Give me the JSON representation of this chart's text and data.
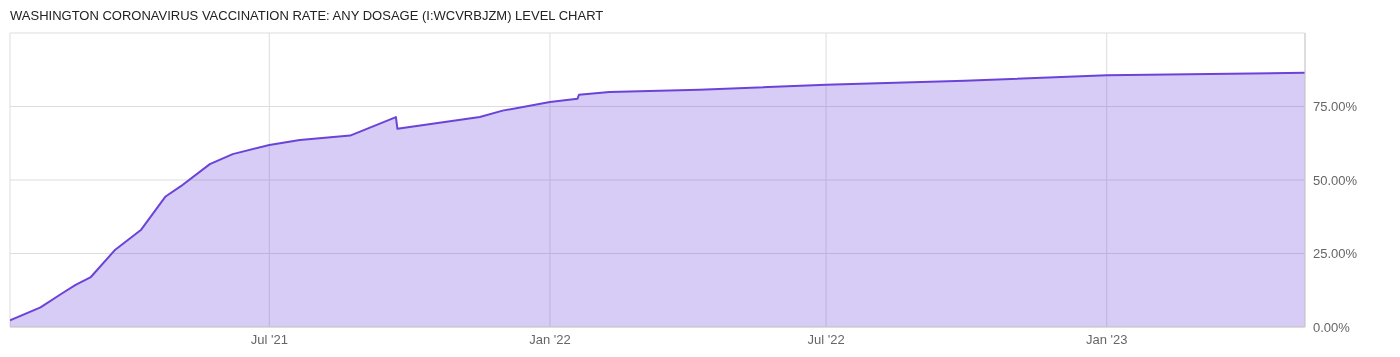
{
  "chart_data": {
    "type": "area",
    "title": "WASHINGTON CORONAVIRUS VACCINATION RATE: ANY DOSAGE (I:WCVRBJZM) LEVEL CHART",
    "x": [
      "2021-01-12",
      "2021-02-01",
      "2021-02-15",
      "2021-02-24",
      "2021-03-06",
      "2021-03-22",
      "2021-04-08",
      "2021-04-24",
      "2021-05-04",
      "2021-05-23",
      "2021-06-07",
      "2021-07-01",
      "2021-07-21",
      "2021-08-23",
      "2021-09-22",
      "2021-09-23",
      "2021-11-16",
      "2021-12-01",
      "2022-01-01",
      "2022-01-19",
      "2022-01-20",
      "2022-02-09",
      "2022-04-09",
      "2022-07-01",
      "2022-09-30",
      "2023-01-01",
      "2023-05-11"
    ],
    "values": [
      2.3,
      6.7,
      11.4,
      14.3,
      17.0,
      26.3,
      33.1,
      44.4,
      47.9,
      55.4,
      58.8,
      61.9,
      63.6,
      65.1,
      71.4,
      67.4,
      71.4,
      73.6,
      76.5,
      77.6,
      79.0,
      79.9,
      80.7,
      82.4,
      83.8,
      85.6,
      86.5
    ],
    "color": "#6c43d9",
    "xlim": [
      "2021-01-12",
      "2023-05-11"
    ],
    "xticks": [
      {
        "value": "2021-07-01",
        "label": "Jul '21"
      },
      {
        "value": "2022-01-01",
        "label": "Jan '22"
      },
      {
        "value": "2022-07-01",
        "label": "Jul '22"
      },
      {
        "value": "2023-01-01",
        "label": "Jan '23"
      }
    ],
    "ylim": [
      0,
      100
    ],
    "yticks": [
      {
        "value": 0,
        "label": "0.00%"
      },
      {
        "value": 25,
        "label": "25.00%"
      },
      {
        "value": 50,
        "label": "50.00%"
      },
      {
        "value": 75,
        "label": "75.00%"
      }
    ],
    "grid": true
  }
}
